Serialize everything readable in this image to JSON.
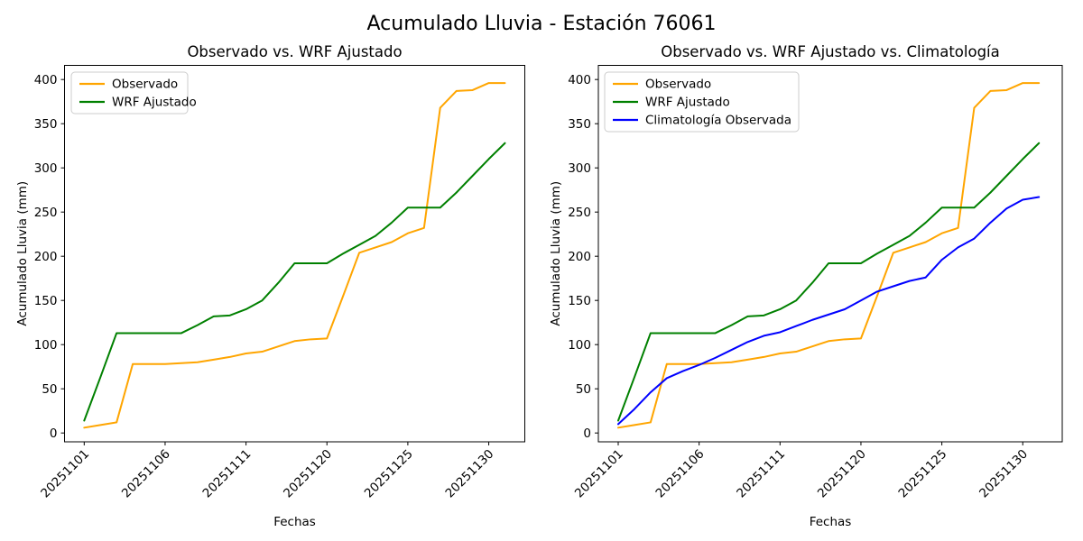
{
  "figure": {
    "suptitle": "Acumulado Lluvia - Estación 76061",
    "background": "#ffffff",
    "text_color": "#000000",
    "spine_color": "#000000"
  },
  "chart_data": [
    {
      "type": "line",
      "title": "Observado vs. WRF Ajustado",
      "xlabel": "Fechas",
      "ylabel": "Acumulado Lluvia (mm)",
      "x_tick_labels": [
        "20251101",
        "20251106",
        "20251111",
        "20251120",
        "20251125",
        "20251130"
      ],
      "x_tick_indices": [
        0,
        5,
        10,
        15,
        20,
        25
      ],
      "x_tick_rotation": 45,
      "y_ticks": [
        0,
        50,
        100,
        150,
        200,
        250,
        300,
        350,
        400
      ],
      "ylim": [
        -10,
        416
      ],
      "grid": false,
      "legend_position": "upper left",
      "legend": [
        "Observado",
        "WRF Ajustado"
      ],
      "series": [
        {
          "name": "Observado",
          "color": "#ffa500",
          "values": [
            6,
            9,
            12,
            78,
            78,
            78,
            79,
            80,
            83,
            86,
            90,
            92,
            98,
            104,
            106,
            107,
            155,
            204,
            210,
            216,
            226,
            232,
            368,
            387,
            388,
            396,
            396
          ]
        },
        {
          "name": "WRF Ajustado",
          "color": "#008000",
          "values": [
            14,
            63,
            113,
            113,
            113,
            113,
            113,
            122,
            132,
            133,
            140,
            150,
            170,
            192,
            192,
            192,
            203,
            213,
            223,
            238,
            255,
            255,
            255,
            272,
            291,
            310,
            328
          ]
        }
      ]
    },
    {
      "type": "line",
      "title": "Observado vs. WRF Ajustado vs. Climatología",
      "xlabel": "Fechas",
      "ylabel": "Acumulado Lluvia (mm)",
      "x_tick_labels": [
        "20251101",
        "20251106",
        "20251111",
        "20251120",
        "20251125",
        "20251130"
      ],
      "x_tick_indices": [
        0,
        5,
        10,
        15,
        20,
        25
      ],
      "x_tick_rotation": 45,
      "y_ticks": [
        0,
        50,
        100,
        150,
        200,
        250,
        300,
        350,
        400
      ],
      "ylim": [
        -10,
        416
      ],
      "grid": false,
      "legend_position": "upper left",
      "legend": [
        "Observado",
        "WRF Ajustado",
        "Climatología Observada"
      ],
      "series": [
        {
          "name": "Observado",
          "color": "#ffa500",
          "values": [
            6,
            9,
            12,
            78,
            78,
            78,
            79,
            80,
            83,
            86,
            90,
            92,
            98,
            104,
            106,
            107,
            155,
            204,
            210,
            216,
            226,
            232,
            368,
            387,
            388,
            396,
            396
          ]
        },
        {
          "name": "WRF Ajustado",
          "color": "#008000",
          "values": [
            14,
            63,
            113,
            113,
            113,
            113,
            113,
            122,
            132,
            133,
            140,
            150,
            170,
            192,
            192,
            192,
            203,
            213,
            223,
            238,
            255,
            255,
            255,
            272,
            291,
            310,
            328
          ]
        },
        {
          "name": "Climatología Observada",
          "color": "#0000ff",
          "values": [
            10,
            27,
            46,
            62,
            70,
            77,
            85,
            94,
            103,
            110,
            114,
            121,
            128,
            134,
            140,
            150,
            160,
            166,
            172,
            176,
            196,
            210,
            220,
            238,
            254,
            264,
            267
          ]
        }
      ]
    }
  ]
}
